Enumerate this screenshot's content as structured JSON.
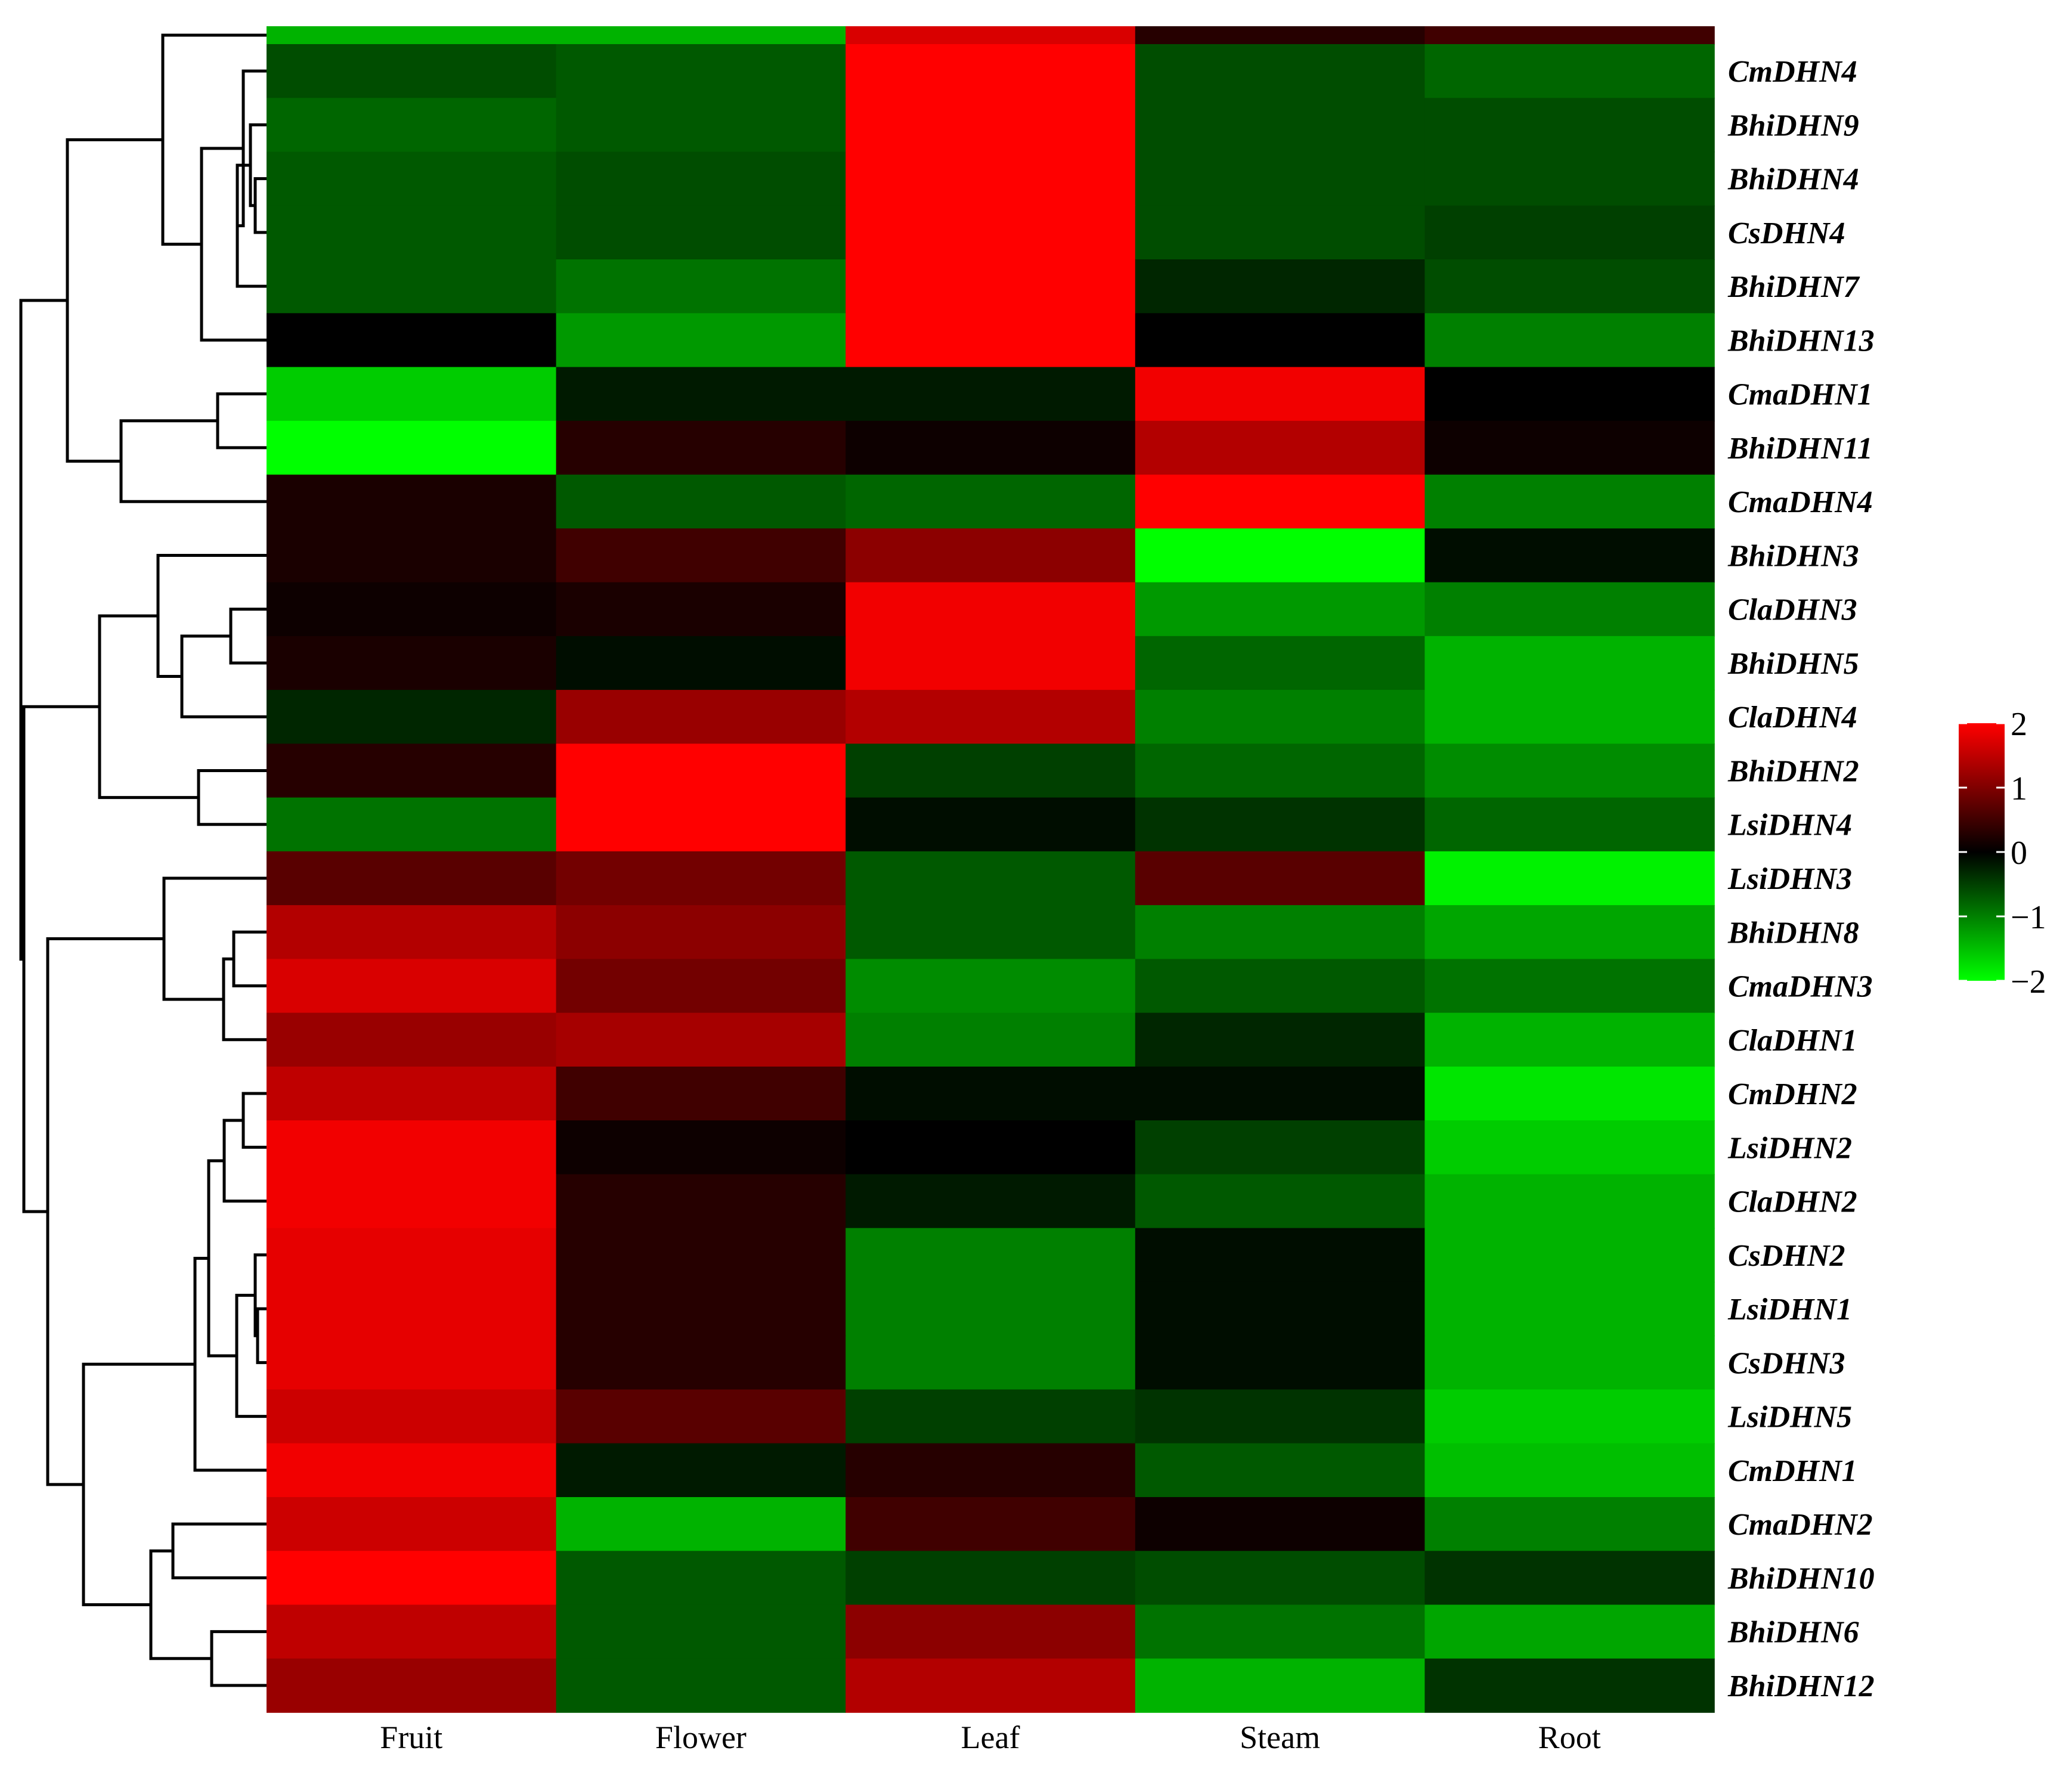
{
  "chart_data": {
    "type": "heatmap",
    "title": "",
    "xlabel": "",
    "ylabel": "",
    "columns": [
      "Fruit",
      "Flower",
      "Leaf",
      "Steam",
      "Root"
    ],
    "rows": [
      "",
      "CmDHN4",
      "BhiDHN9",
      "BhiDHN4",
      "CsDHN4",
      "BhiDHN7",
      "BhiDHN13",
      "CmaDHN1",
      "BhiDHN11",
      "CmaDHN4",
      "BhiDHN3",
      "ClaDHN3",
      "BhiDHN5",
      "ClaDHN4",
      "BhiDHN2",
      "LsiDHN4",
      "LsiDHN3",
      "BhiDHN8",
      "CmaDHN3",
      "ClaDHN1",
      "CmDHN2",
      "LsiDHN2",
      "ClaDHN2",
      "CsDHN2",
      "LsiDHN1",
      "CsDHN3",
      "LsiDHN5",
      "CmDHN1",
      "CmaDHN2",
      "BhiDHN10",
      "BhiDHN6",
      "BhiDHN12"
    ],
    "values": [
      [
        -1.4,
        -1.4,
        1.7,
        0.3,
        0.5
      ],
      [
        -0.6,
        -0.7,
        2.0,
        -0.6,
        -0.8
      ],
      [
        -0.8,
        -0.7,
        2.0,
        -0.6,
        -0.6
      ],
      [
        -0.7,
        -0.6,
        2.0,
        -0.6,
        -0.6
      ],
      [
        -0.7,
        -0.6,
        2.0,
        -0.6,
        -0.5
      ],
      [
        -0.7,
        -0.9,
        2.0,
        -0.3,
        -0.6
      ],
      [
        0.0,
        -1.2,
        2.0,
        0.0,
        -1.0
      ],
      [
        -1.6,
        -0.2,
        -0.2,
        1.9,
        0.0
      ],
      [
        -2.0,
        0.3,
        0.1,
        1.4,
        0.1
      ],
      [
        0.2,
        -0.7,
        -0.8,
        2.0,
        -1.0
      ],
      [
        0.2,
        0.5,
        1.1,
        -2.0,
        -0.1
      ],
      [
        0.1,
        0.2,
        1.9,
        -1.2,
        -1.0
      ],
      [
        0.2,
        -0.1,
        1.9,
        -0.8,
        -1.4
      ],
      [
        -0.3,
        1.2,
        1.4,
        -1.0,
        -1.4
      ],
      [
        0.3,
        2.0,
        -0.5,
        -0.8,
        -1.1
      ],
      [
        -0.9,
        2.0,
        -0.1,
        -0.4,
        -0.8
      ],
      [
        0.7,
        0.9,
        -0.7,
        0.7,
        -1.9
      ],
      [
        1.4,
        1.1,
        -0.7,
        -1.0,
        -1.3
      ],
      [
        1.7,
        0.9,
        -1.1,
        -0.7,
        -0.9
      ],
      [
        1.2,
        1.3,
        -1.0,
        -0.3,
        -1.4
      ],
      [
        1.5,
        0.5,
        -0.1,
        -0.1,
        -1.8
      ],
      [
        1.9,
        0.1,
        0.0,
        -0.5,
        -1.6
      ],
      [
        1.9,
        0.3,
        -0.2,
        -0.7,
        -1.4
      ],
      [
        1.8,
        0.3,
        -1.0,
        -0.1,
        -1.4
      ],
      [
        1.8,
        0.3,
        -1.0,
        -0.1,
        -1.4
      ],
      [
        1.8,
        0.3,
        -1.0,
        -0.1,
        -1.4
      ],
      [
        1.6,
        0.7,
        -0.5,
        -0.4,
        -1.6
      ],
      [
        1.9,
        -0.2,
        0.3,
        -0.7,
        -1.5
      ],
      [
        1.6,
        -1.4,
        0.5,
        0.1,
        -1.0
      ],
      [
        2.0,
        -0.7,
        -0.5,
        -0.6,
        -0.4
      ],
      [
        1.5,
        -0.7,
        1.1,
        -0.9,
        -1.3
      ],
      [
        1.2,
        -0.7,
        1.4,
        -1.4,
        -0.4
      ]
    ],
    "scale_min": -2,
    "scale_max": 2,
    "colors": {
      "low": "#00ff00",
      "mid": "#000000",
      "high": "#ff0000"
    },
    "legend": {
      "ticks": [
        "2",
        "1",
        "0",
        "−1",
        "−2"
      ],
      "values": [
        2,
        1,
        0,
        -1,
        -2
      ],
      "placement": "right"
    },
    "dendrogram": "row clustering (left)"
  }
}
